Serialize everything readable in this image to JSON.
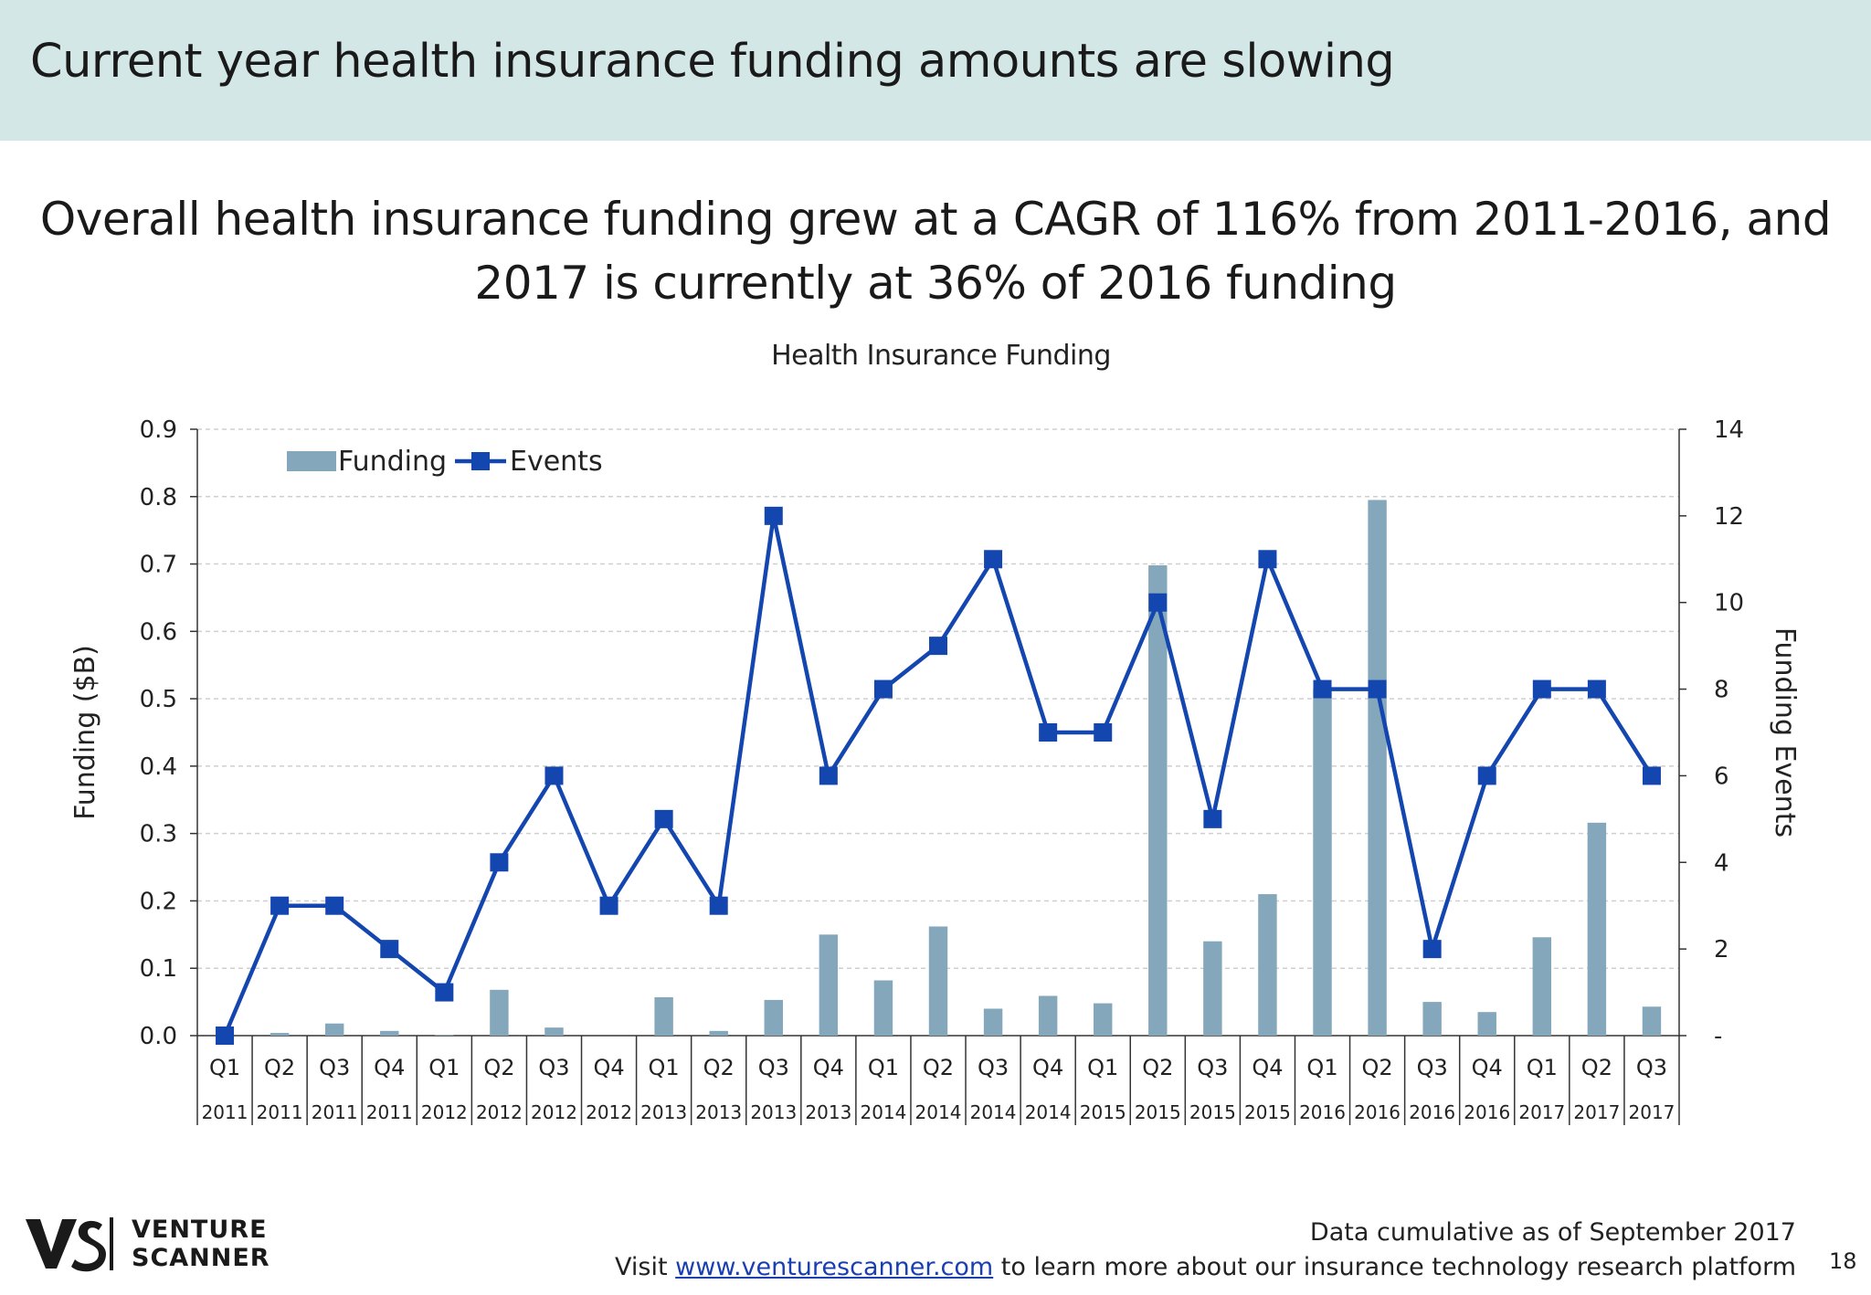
{
  "header": {
    "title": "Current year health insurance funding amounts are slowing"
  },
  "subtitle": {
    "line1": "Overall health insurance funding grew at a CAGR of 116% from 2011-2016, and",
    "line2": "2017 is currently at 36% of 2016 funding"
  },
  "chart_data": {
    "type": "bar",
    "title": "Health Insurance Funding",
    "ylabel": "Funding ($B)",
    "y2label": "Funding Events",
    "ylim": [
      0,
      0.9
    ],
    "y2lim": [
      0,
      14
    ],
    "y_ticks": [
      "0.0",
      "0.1",
      "0.2",
      "0.3",
      "0.4",
      "0.5",
      "0.6",
      "0.7",
      "0.8",
      "0.9"
    ],
    "y2_ticks": [
      "-",
      "2",
      "4",
      "6",
      "8",
      "10",
      "12",
      "14"
    ],
    "grid": true,
    "legend": "top-left",
    "quarters": [
      "Q1",
      "Q2",
      "Q3",
      "Q4",
      "Q1",
      "Q2",
      "Q3",
      "Q4",
      "Q1",
      "Q2",
      "Q3",
      "Q4",
      "Q1",
      "Q2",
      "Q3",
      "Q4",
      "Q1",
      "Q2",
      "Q3",
      "Q4",
      "Q1",
      "Q2",
      "Q3",
      "Q4",
      "Q1",
      "Q2",
      "Q3"
    ],
    "years": [
      "2011",
      "2011",
      "2011",
      "2011",
      "2012",
      "2012",
      "2012",
      "2012",
      "2013",
      "2013",
      "2013",
      "2013",
      "2014",
      "2014",
      "2014",
      "2014",
      "2015",
      "2015",
      "2015",
      "2015",
      "2016",
      "2016",
      "2016",
      "2016",
      "2017",
      "2017",
      "2017"
    ],
    "series": [
      {
        "name": "Funding",
        "type": "bar",
        "axis": "left",
        "color": "#84a7bb",
        "values": [
          0,
          0.004,
          0.018,
          0.007,
          0.001,
          0.068,
          0.012,
          0,
          0.057,
          0.007,
          0.053,
          0.15,
          0.082,
          0.162,
          0.04,
          0.059,
          0.048,
          0.698,
          0.14,
          0.21,
          0.515,
          0.795,
          0.05,
          0.035,
          0.146,
          0.316,
          0.043
        ]
      },
      {
        "name": "Events",
        "type": "line",
        "axis": "right",
        "color": "#1446b0",
        "values": [
          0,
          3,
          3,
          2,
          1,
          4,
          6,
          3,
          5,
          3,
          12,
          6,
          8,
          9,
          11,
          7,
          7,
          10,
          5,
          11,
          8,
          8,
          2,
          6,
          8,
          8,
          6
        ]
      }
    ]
  },
  "footer": {
    "data_note": "Data cumulative as of September 2017",
    "visit_prefix": "Visit ",
    "visit_link": "www.venturescanner.com",
    "visit_suffix": " to learn more about our insurance technology research platform",
    "page_number": "18"
  },
  "logo": {
    "line1": "VENTURE",
    "line2": "SCANNER"
  }
}
